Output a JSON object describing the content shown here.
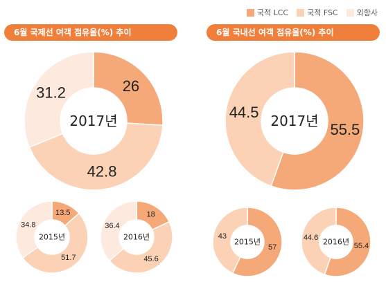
{
  "legend": [
    {
      "label": "국적 LCC",
      "color": "#f5a878"
    },
    {
      "label": "국적 FSC",
      "color": "#fbd2b5"
    },
    {
      "label": "외항사",
      "color": "#fde9dd"
    }
  ],
  "panels": [
    {
      "title": "6월 국제선 여객 점유율(%) 추이"
    },
    {
      "title": "6월 국내선 여객 점유율(%) 추이"
    }
  ],
  "chart_data": [
    {
      "type": "pie",
      "panel": "international",
      "year": "2017년",
      "labels": [
        "국적 LCC",
        "국적 FSC",
        "외항사"
      ],
      "values": [
        26,
        42.8,
        31.2
      ]
    },
    {
      "type": "pie",
      "panel": "international",
      "year": "2015년",
      "labels": [
        "국적 LCC",
        "국적 FSC",
        "외항사"
      ],
      "values": [
        13.5,
        51.7,
        34.8
      ]
    },
    {
      "type": "pie",
      "panel": "international",
      "year": "2016년",
      "labels": [
        "국적 LCC",
        "국적 FSC",
        "외항사"
      ],
      "values": [
        18,
        45.6,
        36.4
      ]
    },
    {
      "type": "pie",
      "panel": "domestic",
      "year": "2017년",
      "labels": [
        "국적 LCC",
        "국적 FSC"
      ],
      "values": [
        55.5,
        44.5
      ]
    },
    {
      "type": "pie",
      "panel": "domestic",
      "year": "2015년",
      "labels": [
        "국적 LCC",
        "국적 FSC"
      ],
      "values": [
        57,
        43
      ]
    },
    {
      "type": "pie",
      "panel": "domestic",
      "year": "2016년",
      "labels": [
        "국적 LCC",
        "국적 FSC"
      ],
      "values": [
        55.4,
        44.6
      ]
    }
  ]
}
